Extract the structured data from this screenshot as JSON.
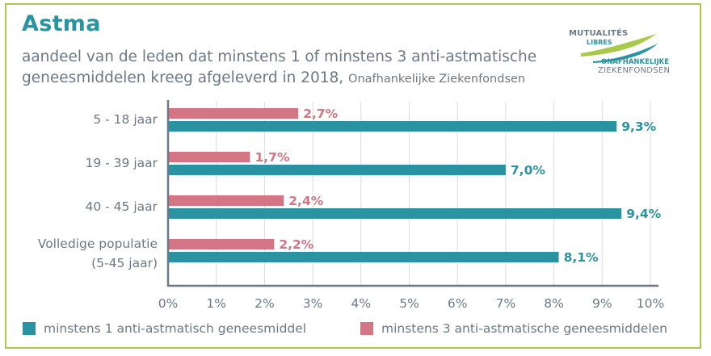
{
  "header": {
    "title": "Astma",
    "subtitle_line1": "aandeel van de leden dat minstens 1 of minstens 3 anti-astmatische",
    "subtitle_line2": "geneesmiddelen kreeg afgeleverd in 2018,",
    "subtitle_source": "Onafhankelijke Ziekenfondsen"
  },
  "logo": {
    "line1": "MUTUALITÉS",
    "line2": "LIBRES",
    "line3": "ONAFHANKELIJKE",
    "line4": "ZIEKENFONDSEN"
  },
  "colors": {
    "teal": "#2a93a2",
    "pink": "#d37584",
    "frame": "#a8c94a",
    "text": "#6d7886"
  },
  "chart_data": {
    "type": "bar",
    "orientation": "horizontal",
    "title": "Astma",
    "categories": [
      "5 - 18 jaar",
      "19 - 39 jaar",
      "40 - 45 jaar",
      "Volledige populatie|(5-45 jaar)"
    ],
    "series": [
      {
        "name": "minstens 3 anti-astmatische geneesmiddelen",
        "color": "#d37584",
        "values": [
          2.7,
          1.7,
          2.4,
          2.2
        ],
        "labels": [
          "2,7%",
          "1,7%",
          "2,4%",
          "2,2%"
        ]
      },
      {
        "name": "minstens 1 anti-astmatisch geneesmiddel",
        "color": "#2a93a2",
        "values": [
          9.3,
          7.0,
          9.4,
          8.1
        ],
        "labels": [
          "9,3%",
          "7,0%",
          "9,4%",
          "8,1%"
        ]
      }
    ],
    "xlim": [
      0,
      10
    ],
    "xticks": [
      0,
      1,
      2,
      3,
      4,
      5,
      6,
      7,
      8,
      9,
      10
    ],
    "xtick_labels": [
      "0%",
      "1%",
      "2%",
      "3%",
      "4%",
      "5%",
      "6%",
      "7%",
      "8%",
      "9%",
      "10%"
    ],
    "xlabel": "",
    "ylabel": "",
    "grid": "vertical",
    "legend_position": "bottom"
  },
  "legend": [
    {
      "label": "minstens 1 anti-astmatisch geneesmiddel",
      "color": "#2a93a2"
    },
    {
      "label": "minstens 3 anti-astmatische geneesmiddelen",
      "color": "#d37584"
    }
  ]
}
